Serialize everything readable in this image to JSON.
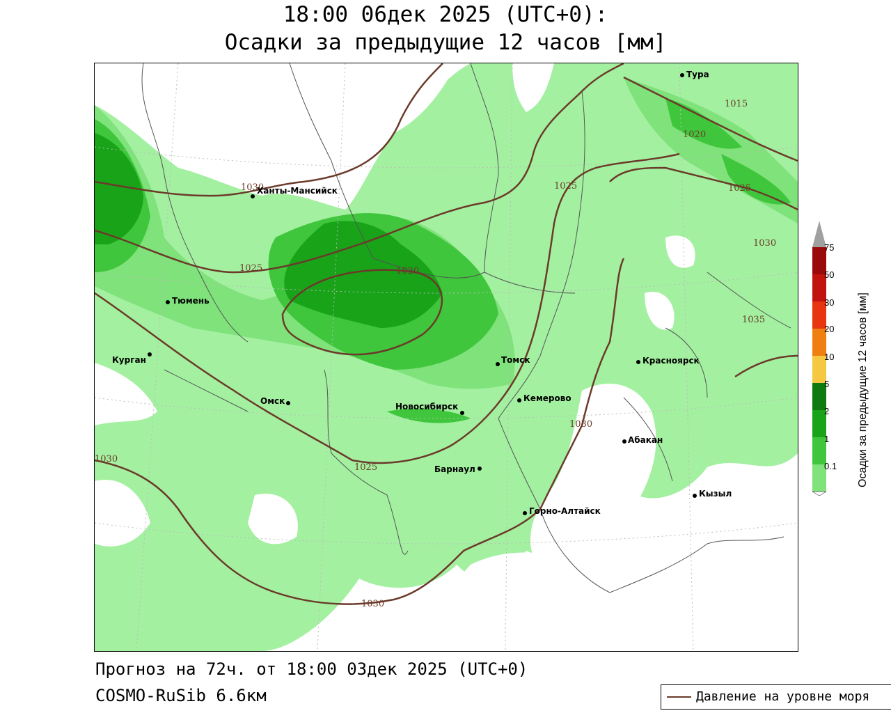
{
  "header": {
    "title_line1": "18:00 06дек 2025 (UTC+0):",
    "title_line2": "Осадки за предыдущие 12 часов [мм]"
  },
  "footer": {
    "forecast": "Прогноз на 72ч. от 18:00 03дек 2025 (UTC+0)",
    "model": "COSMO-RuSib 6.6км"
  },
  "legend": {
    "pressure_label": "Давление на уровне моря",
    "pressure_color": "#6b3a2a"
  },
  "colorbar": {
    "title": "Осадки за предыдущие 12 часов [мм]",
    "ticks": [
      "0.1",
      "1",
      "2",
      "5",
      "10",
      "20",
      "30",
      "50",
      "75"
    ],
    "colors": [
      "#a3f0a0",
      "#7fe27a",
      "#3fc63c",
      "#18a318",
      "#0f7a0f",
      "#f5c842",
      "#f07f12",
      "#e8340f",
      "#c2140f",
      "#9a0a0a"
    ],
    "overflow_color": "#a0a0a0"
  },
  "cities": [
    {
      "name": "Тура"
    },
    {
      "name": "Ханты-Мансийск"
    },
    {
      "name": "Тюмень"
    },
    {
      "name": "Курган"
    },
    {
      "name": "Омск"
    },
    {
      "name": "Новосибирск"
    },
    {
      "name": "Томск"
    },
    {
      "name": "Кемерово"
    },
    {
      "name": "Красноярск"
    },
    {
      "name": "Абакан"
    },
    {
      "name": "Барнаул"
    },
    {
      "name": "Горно-Алтайск"
    },
    {
      "name": "Кызыл"
    }
  ],
  "isobars": [
    "1015",
    "1020",
    "1025",
    "1030",
    "1035"
  ]
}
